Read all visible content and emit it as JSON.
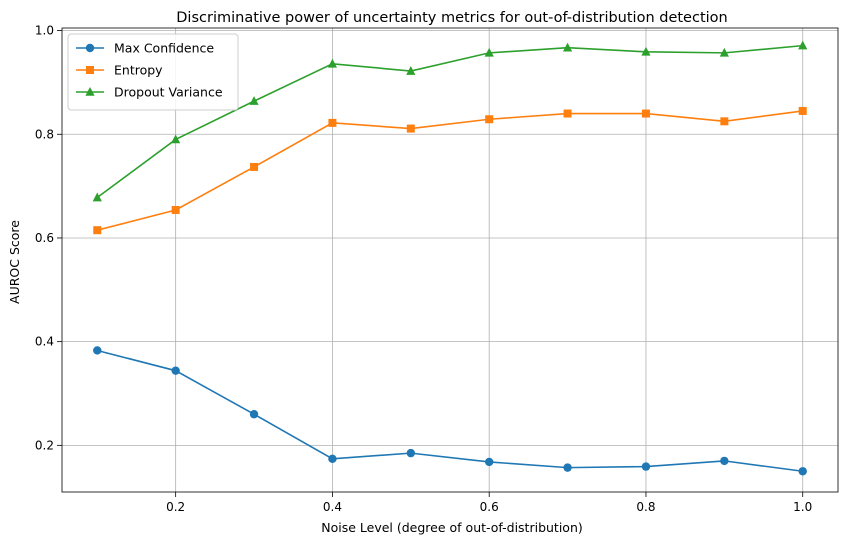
{
  "chart_data": {
    "type": "line",
    "title": "Discriminative power of uncertainty metrics for out-of-distribution detection",
    "xlabel": "Noise Level (degree of out-of-distribution)",
    "ylabel": "AUROC Score",
    "x": [
      0.1,
      0.2,
      0.3,
      0.4,
      0.5,
      0.6,
      0.7,
      0.8,
      0.9,
      1.0
    ],
    "xlim": [
      0.055,
      1.045
    ],
    "ylim": [
      0.11,
      1.005
    ],
    "xticks": [
      0.2,
      0.4,
      0.6,
      0.8,
      1.0
    ],
    "xtick_labels": [
      "0.2",
      "0.4",
      "0.6",
      "0.8",
      "1.0"
    ],
    "yticks": [
      0.2,
      0.4,
      0.6,
      0.8,
      1.0
    ],
    "ytick_labels": [
      "0.2",
      "0.4",
      "0.6",
      "0.8",
      "1.0"
    ],
    "grid": true,
    "legend_position": "top-left",
    "series": [
      {
        "name": "Max Confidence",
        "color": "#1f77b4",
        "marker": "circle",
        "values": [
          0.383,
          0.344,
          0.26,
          0.174,
          0.185,
          0.168,
          0.157,
          0.159,
          0.17,
          0.15
        ]
      },
      {
        "name": "Entropy",
        "color": "#ff7f0e",
        "marker": "square",
        "values": [
          0.615,
          0.654,
          0.737,
          0.822,
          0.811,
          0.829,
          0.84,
          0.84,
          0.825,
          0.845
        ]
      },
      {
        "name": "Dropout Variance",
        "color": "#2ca02c",
        "marker": "triangle",
        "values": [
          0.678,
          0.79,
          0.864,
          0.936,
          0.922,
          0.957,
          0.967,
          0.959,
          0.957,
          0.971
        ]
      }
    ]
  }
}
